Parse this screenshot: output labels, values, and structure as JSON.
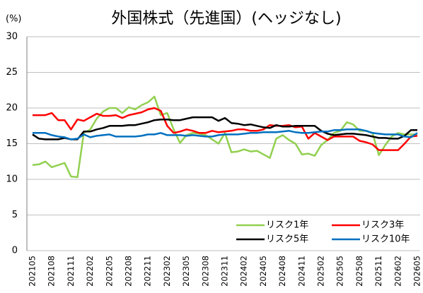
{
  "chart_data": {
    "type": "line",
    "title": "外国株式（先進国）(ヘッジなし)",
    "y_label": "(%)",
    "categories": [
      "202105",
      null,
      null,
      "202108",
      null,
      null,
      "202111",
      null,
      null,
      "202202",
      null,
      null,
      "202205",
      null,
      null,
      "202208",
      null,
      null,
      "202211",
      null,
      null,
      "202302",
      null,
      null,
      "202305",
      null,
      null,
      "202308",
      null,
      null,
      "202311",
      null,
      null,
      "202402",
      null,
      null,
      "202405",
      null,
      null,
      "202408",
      null,
      null,
      "202411",
      null,
      null,
      "202502",
      null,
      null,
      "202505",
      null,
      null,
      "202508",
      null,
      null,
      "202511",
      null,
      null,
      "202602",
      null,
      null,
      "202605"
    ],
    "series": [
      {
        "name": "リスク1年",
        "color": "#92d050",
        "values": [
          12,
          12.1,
          12.5,
          11.7,
          12,
          12.3,
          10.4,
          10.3,
          16.5,
          17,
          18.5,
          19.5,
          20,
          20,
          19.3,
          20.1,
          19.8,
          20.4,
          20.8,
          21.6,
          19,
          19.3,
          17,
          15.1,
          16.2,
          16.5,
          16.4,
          16.2,
          15.6,
          15,
          16.5,
          13.8,
          13.9,
          14.2,
          13.9,
          14,
          13.5,
          13,
          15.7,
          16.2,
          15.5,
          15,
          13.5,
          13.6,
          13.3,
          14.8,
          15.5,
          16.5,
          16.8,
          18,
          17.7,
          16.8,
          16.8,
          16.5,
          13.4,
          14.8,
          16,
          16.5,
          16.3,
          16.3,
          16.3
        ]
      },
      {
        "name": "リスク3年",
        "color": "#ff0000",
        "values": [
          19,
          19,
          19,
          19.3,
          18.3,
          18.3,
          17,
          18.4,
          18.2,
          18.7,
          19.2,
          18.9,
          18.9,
          19,
          18.6,
          19,
          19.2,
          19.4,
          19.8,
          20,
          19.6,
          17.5,
          16.5,
          16.7,
          17,
          16.8,
          16.5,
          16.5,
          16.8,
          16.6,
          16.7,
          16.8,
          17,
          17,
          16.8,
          16.8,
          17,
          17.6,
          17.5,
          17.5,
          17.6,
          17.3,
          17.4,
          15.7,
          16.5,
          16,
          15.5,
          16,
          16,
          16,
          16,
          15.4,
          15.2,
          14.9,
          14.1,
          14.1,
          14.1,
          14.1,
          15,
          16,
          16.1
        ]
      },
      {
        "name": "リスク5年",
        "color": "#000000",
        "values": [
          16.3,
          15.7,
          15.6,
          15.6,
          15.6,
          15.8,
          15.6,
          15.6,
          16.7,
          16.7,
          17,
          17.2,
          17.5,
          17.5,
          17.5,
          17.6,
          17.6,
          17.8,
          18,
          18.3,
          18.4,
          18.4,
          18.3,
          18.3,
          18.5,
          18.7,
          18.7,
          18.7,
          18.7,
          18.2,
          18.6,
          17.9,
          17.8,
          17.6,
          17.7,
          17.5,
          17.3,
          17.2,
          17.6,
          17.4,
          17.4,
          17.5,
          17.5,
          17.5,
          17.5,
          16.8,
          16.4,
          16.2,
          16.3,
          16.4,
          16.4,
          16.3,
          16.2,
          16,
          15.8,
          15.8,
          15.7,
          15.7,
          16.1,
          16.9,
          16.9
        ]
      },
      {
        "name": "リスク10年",
        "color": "#0070c0",
        "values": [
          16.5,
          16.5,
          16.5,
          16.2,
          16,
          15.9,
          15.6,
          15.7,
          16.3,
          15.9,
          16.1,
          16.2,
          16.3,
          16,
          16,
          16,
          16,
          16.1,
          16.3,
          16.3,
          16.5,
          16.2,
          16.2,
          16.2,
          16.1,
          16.2,
          16.1,
          16,
          16,
          16.2,
          16.3,
          16.3,
          16.3,
          16.4,
          16.5,
          16.5,
          16.6,
          16.6,
          16.6,
          16.7,
          16.8,
          16.6,
          16.5,
          16.5,
          16.6,
          16.7,
          16.7,
          16.9,
          16.9,
          17,
          17,
          17,
          16.8,
          16.5,
          16.4,
          16.3,
          16.3,
          16.3,
          16,
          15.9,
          16.5
        ]
      }
    ],
    "ylim": [
      0,
      30
    ],
    "yticks": [
      0,
      5,
      10,
      15,
      20,
      25,
      30
    ],
    "grid": true
  }
}
